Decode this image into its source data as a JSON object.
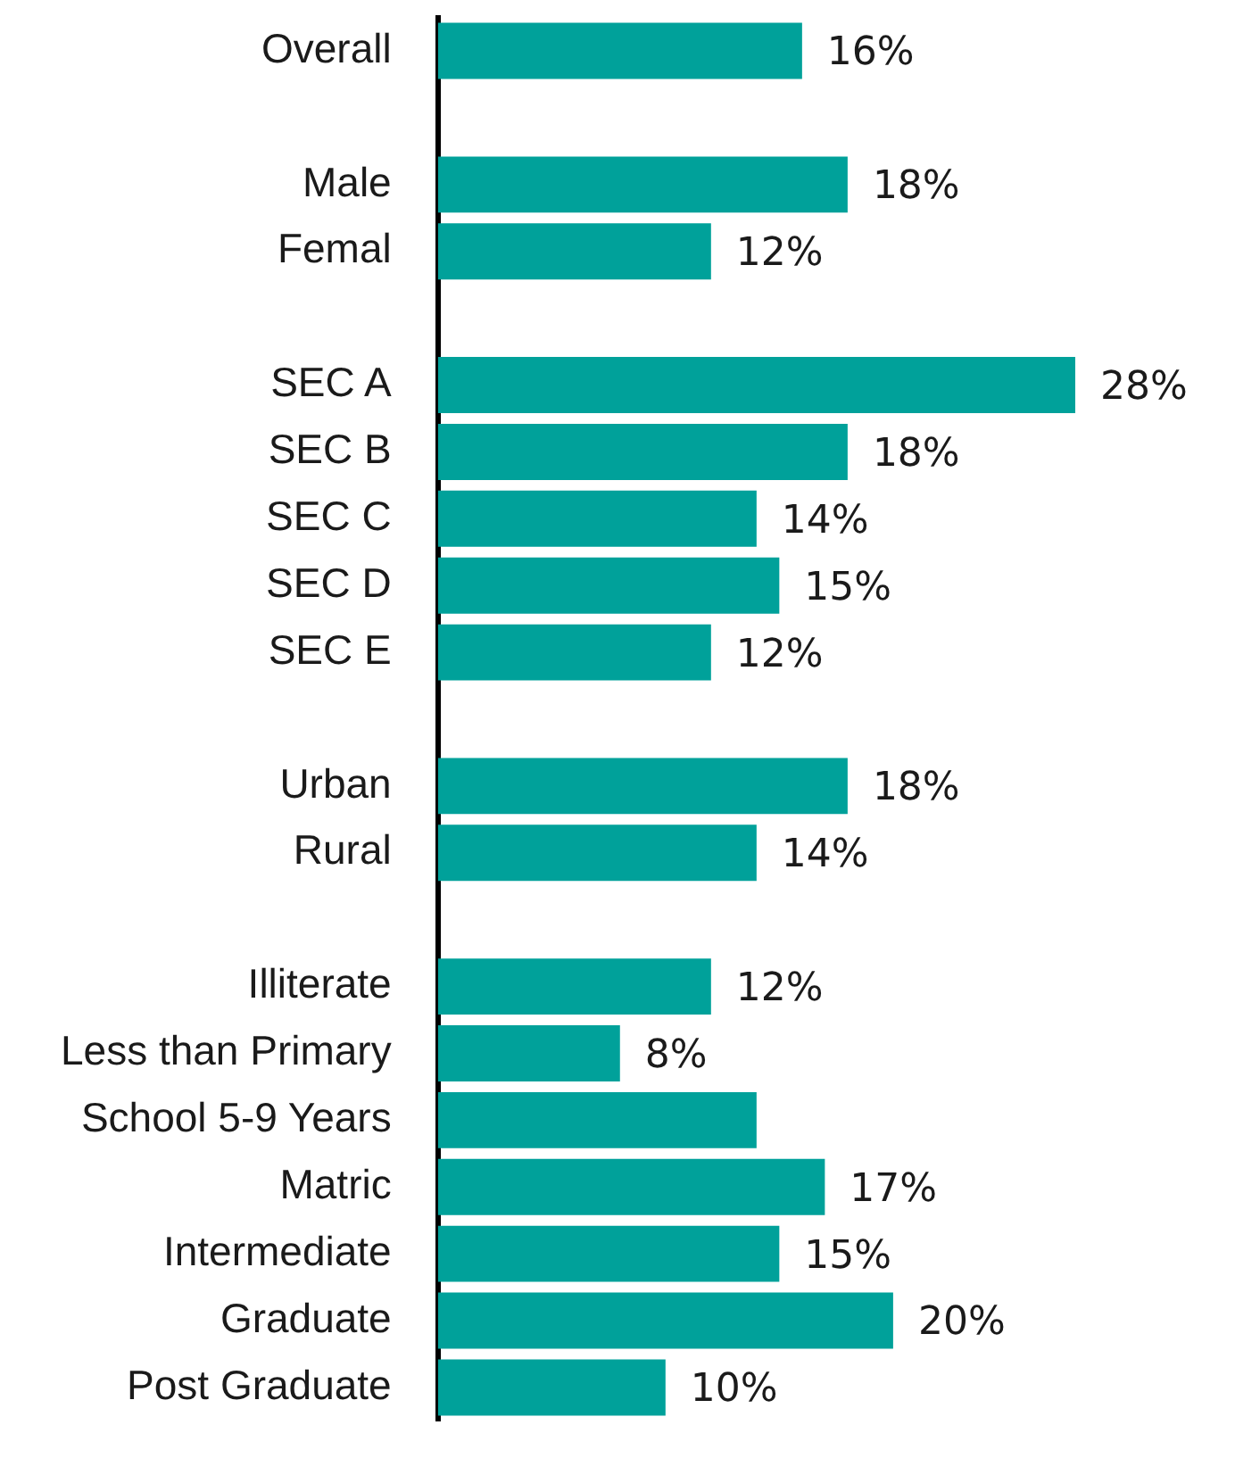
{
  "chart_data": {
    "type": "bar",
    "orientation": "horizontal",
    "categories": [
      "Overall",
      null,
      "Male",
      "Femal",
      null,
      "SEC A",
      "SEC B",
      "SEC C",
      "SEC D",
      "SEC E",
      null,
      "Urban",
      "Rural",
      null,
      "Illiterate",
      "Less than Primary",
      "School 5-9 Years",
      "Matric",
      "Intermediate",
      "Graduate",
      "Post Graduate"
    ],
    "values": [
      16,
      null,
      18,
      12,
      null,
      28,
      18,
      14,
      15,
      12,
      null,
      18,
      14,
      null,
      12,
      8,
      14,
      17,
      15,
      20,
      10
    ],
    "value_labels": [
      "16%",
      null,
      "18%",
      "12%",
      null,
      "28%",
      "18%",
      "14%",
      "15%",
      "12%",
      null,
      "18%",
      "14%",
      null,
      "12%",
      "8%",
      null,
      "17%",
      "15%",
      "20%",
      "10%"
    ],
    "color": "#00a19a"
  }
}
